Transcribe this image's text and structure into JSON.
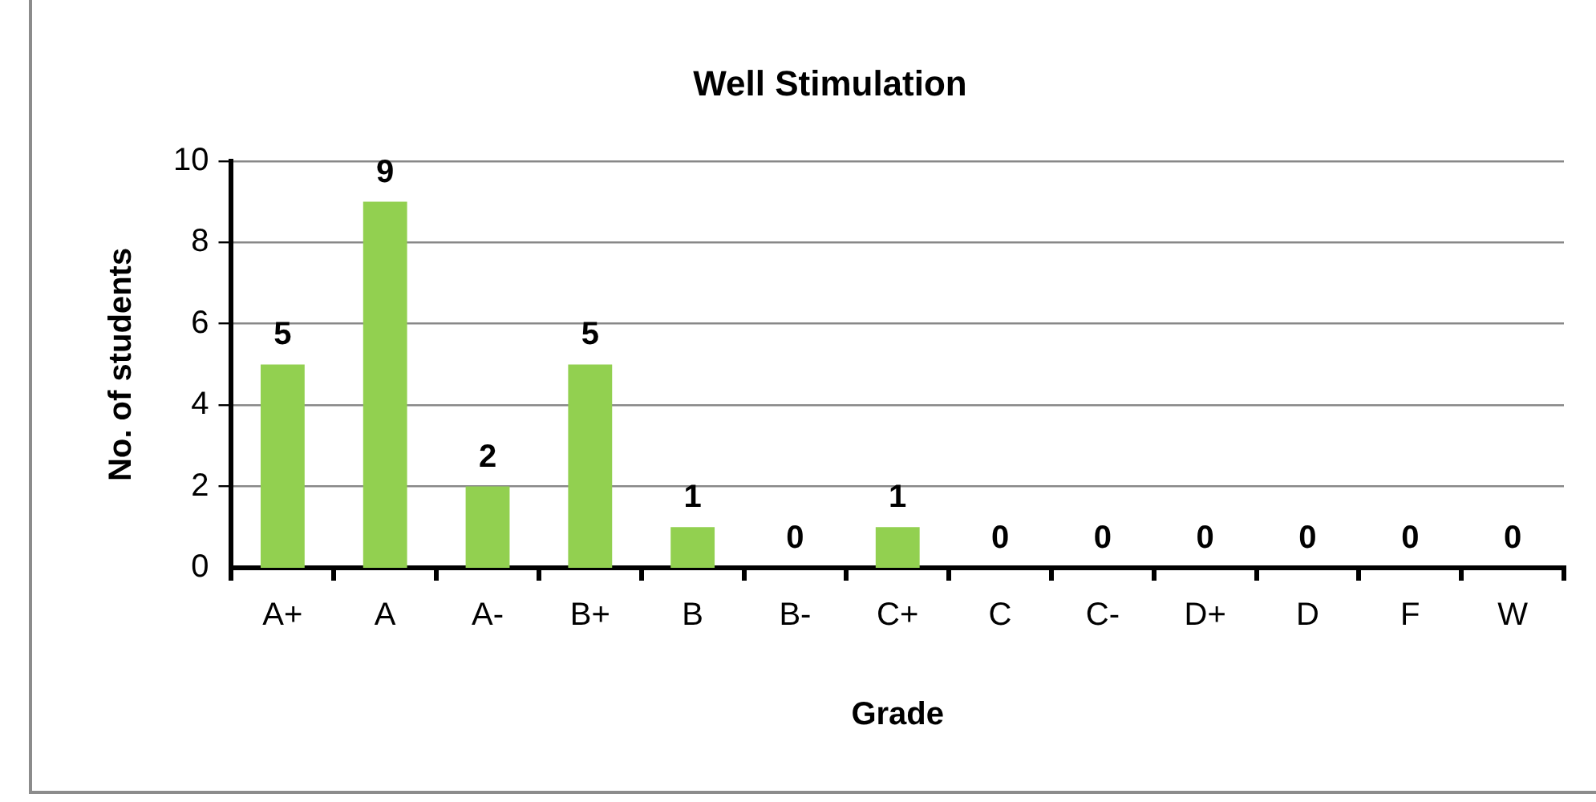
{
  "chart_data": {
    "type": "bar",
    "title": "Well Stimulation",
    "xlabel": "Grade",
    "ylabel": "No. of students",
    "categories": [
      "A+",
      "A",
      "A-",
      "B+",
      "B",
      "B-",
      "C+",
      "C",
      "C-",
      "D+",
      "D",
      "F",
      "W"
    ],
    "values": [
      5,
      9,
      2,
      5,
      1,
      0,
      1,
      0,
      0,
      0,
      0,
      0,
      0
    ],
    "color": "#92d050",
    "ylim": [
      0,
      10
    ],
    "yticks": [
      0,
      2,
      4,
      6,
      8,
      10
    ],
    "grid": "y",
    "legend": false,
    "data_labels": true
  }
}
